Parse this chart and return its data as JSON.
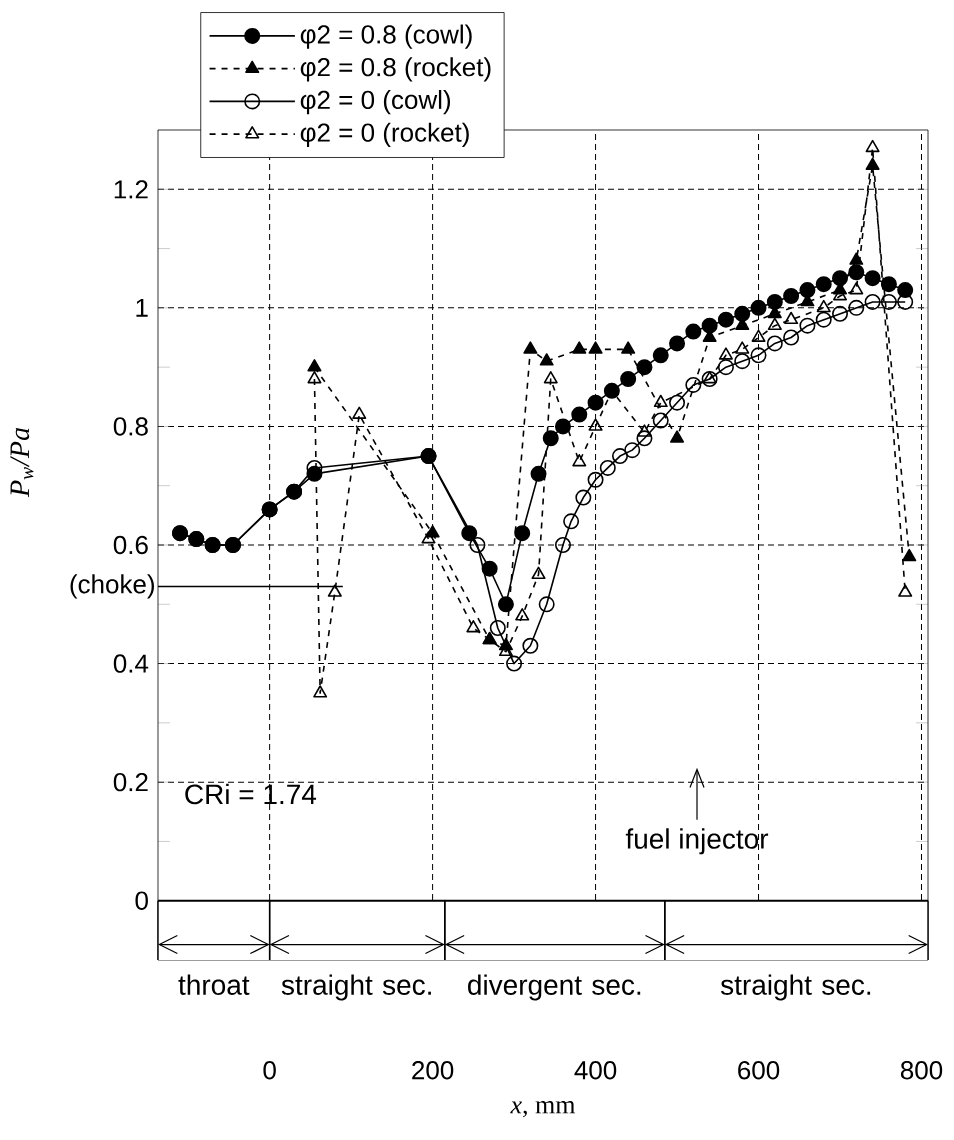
{
  "chart_data": {
    "type": "line",
    "xlabel": "*x*, mm",
    "ylabel": "P$_{w}$/Pa",
    "xlim": [
      -137,
      808
    ],
    "ylim": [
      -0.1,
      1.3
    ],
    "xticks": [
      0,
      200,
      400,
      600,
      800
    ],
    "yticks": [
      0,
      0.2,
      0.4,
      0.6,
      0.8,
      1,
      1.2
    ],
    "grid": true,
    "legend": "top left",
    "series": [
      {
        "name": "φ2 = 0.8 (cowl)",
        "color": "#000000",
        "marker": "circle",
        "line_style": "solid",
        "x": [
          -110,
          -90,
          -70,
          -45,
          0,
          30,
          55,
          195,
          245,
          270,
          290,
          310,
          330,
          345,
          360,
          380,
          400,
          420,
          440,
          460,
          480,
          500,
          520,
          540,
          560,
          580,
          600,
          620,
          640,
          660,
          680,
          700,
          720,
          740,
          760,
          780
        ],
        "values": [
          0.62,
          0.61,
          0.6,
          0.6,
          0.66,
          0.69,
          0.72,
          0.75,
          0.62,
          0.56,
          0.5,
          0.62,
          0.72,
          0.78,
          0.8,
          0.82,
          0.84,
          0.86,
          0.88,
          0.9,
          0.92,
          0.94,
          0.96,
          0.97,
          0.98,
          0.99,
          1.0,
          1.01,
          1.02,
          1.03,
          1.04,
          1.05,
          1.06,
          1.05,
          1.04,
          1.03
        ]
      },
      {
        "name": "φ2 = 0.8 (rocket)",
        "color": "#000000",
        "marker": "triangle",
        "line_style": "dashed",
        "x": [
          55,
          200,
          270,
          290,
          320,
          340,
          380,
          400,
          440,
          500,
          540,
          580,
          620,
          660,
          700,
          720,
          740,
          785
        ],
        "values": [
          0.9,
          0.62,
          0.44,
          0.43,
          0.93,
          0.91,
          0.93,
          0.93,
          0.93,
          0.78,
          0.95,
          0.97,
          0.99,
          1.01,
          1.03,
          1.08,
          1.24,
          0.58
        ]
      },
      {
        "name": "φ2 = 0 (cowl)",
        "color": "#000000",
        "marker": "circle",
        "line_style": "solid",
        "x": [
          -110,
          -90,
          -70,
          -45,
          0,
          30,
          55,
          195,
          255,
          280,
          300,
          320,
          340,
          360,
          370,
          385,
          400,
          415,
          430,
          445,
          460,
          480,
          500,
          520,
          540,
          560,
          580,
          600,
          620,
          640,
          660,
          680,
          700,
          720,
          740,
          760,
          780
        ],
        "values": [
          0.62,
          0.61,
          0.6,
          0.6,
          0.66,
          0.69,
          0.73,
          0.75,
          0.6,
          0.46,
          0.4,
          0.43,
          0.5,
          0.6,
          0.64,
          0.68,
          0.71,
          0.73,
          0.75,
          0.76,
          0.78,
          0.81,
          0.84,
          0.87,
          0.88,
          0.9,
          0.91,
          0.92,
          0.94,
          0.95,
          0.97,
          0.98,
          0.99,
          1.0,
          1.01,
          1.01,
          1.01
        ]
      },
      {
        "name": "φ2 = 0 (rocket)",
        "color": "#000000",
        "marker": "triangle",
        "line_style": "dashed",
        "x": [
          55,
          62,
          80,
          110,
          195,
          250,
          270,
          290,
          310,
          330,
          345,
          380,
          400,
          420,
          460,
          480,
          540,
          560,
          580,
          600,
          620,
          640,
          680,
          700,
          720,
          740,
          780
        ],
        "values": [
          0.88,
          0.35,
          0.52,
          0.82,
          0.61,
          0.46,
          0.44,
          0.42,
          0.48,
          0.55,
          0.88,
          0.74,
          0.8,
          0.86,
          0.79,
          0.84,
          0.88,
          0.92,
          0.93,
          0.95,
          0.97,
          0.98,
          1.0,
          1.02,
          1.03,
          1.27,
          0.52
        ]
      }
    ],
    "ref_lines": [
      {
        "axis": "y",
        "value": 0.53,
        "label": "(choke)"
      }
    ],
    "bands": [
      {
        "axis": "x",
        "from": -137,
        "to": 0,
        "label": "throat",
        "color": "#ffffff"
      },
      {
        "axis": "x",
        "from": 0,
        "to": 215,
        "label": "straight sec.",
        "color": "#ffffff"
      },
      {
        "axis": "x",
        "from": 215,
        "to": 485,
        "label": "divergent sec.",
        "color": "#ffffff"
      },
      {
        "axis": "x",
        "from": 485,
        "to": 808,
        "label": "straight sec.",
        "color": "#ffffff"
      }
    ],
    "annotations": [
      "CRi = 1.74",
      "fuel injector"
    ]
  }
}
